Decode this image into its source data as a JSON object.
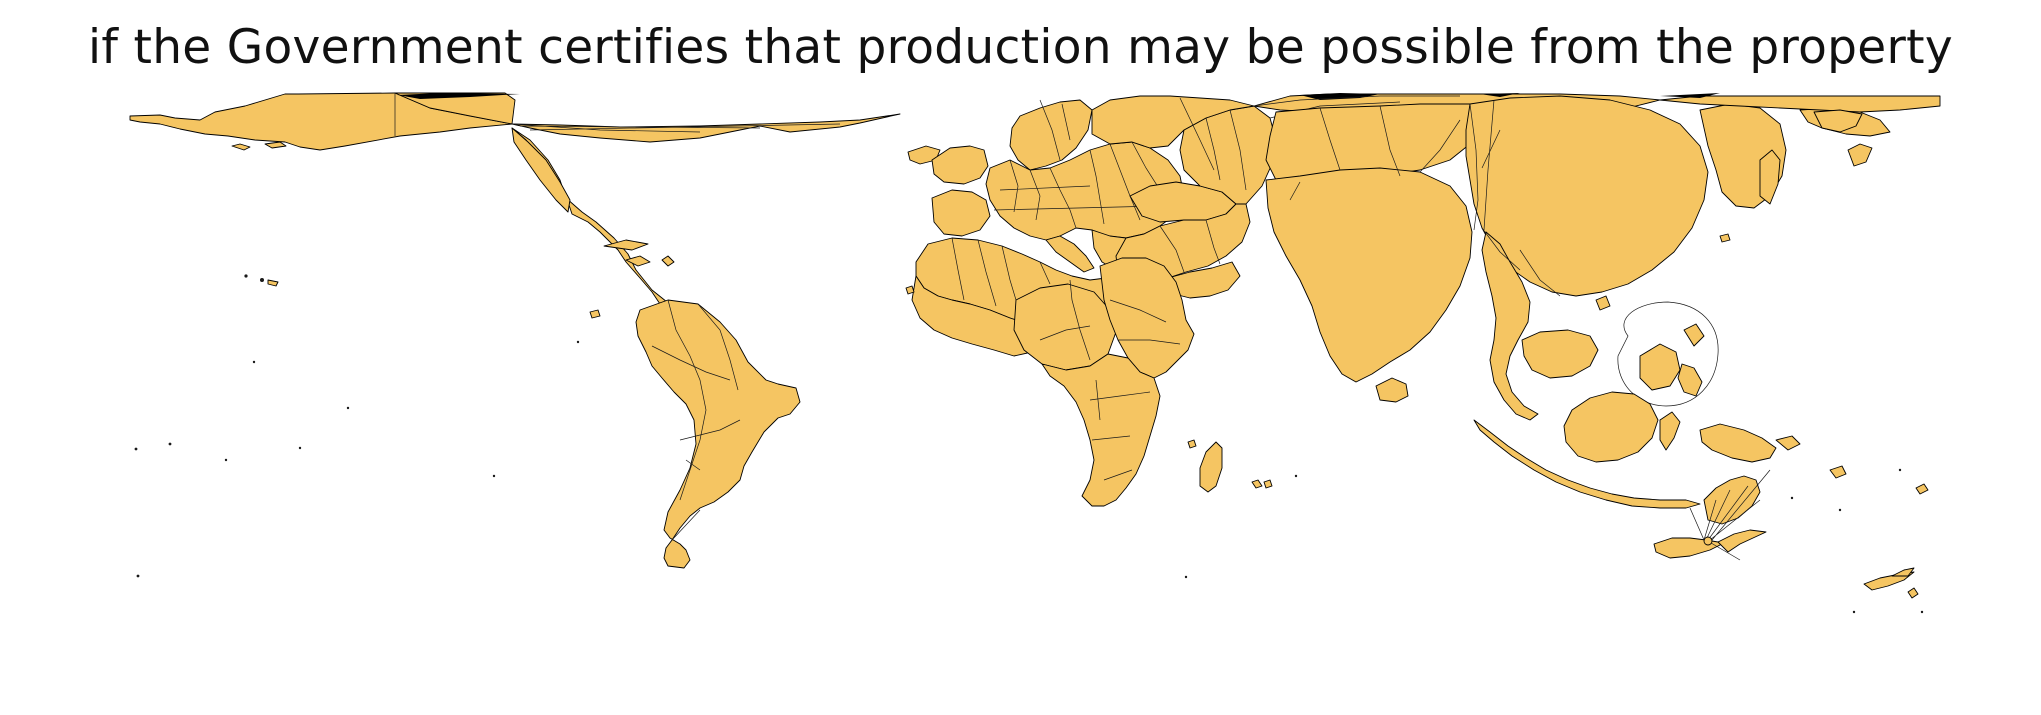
{
  "title": "if the Government certifies that production may be possible from the property",
  "colors": {
    "land_fill": "#f5c562",
    "outline": "#000000",
    "background": "#ffffff"
  }
}
